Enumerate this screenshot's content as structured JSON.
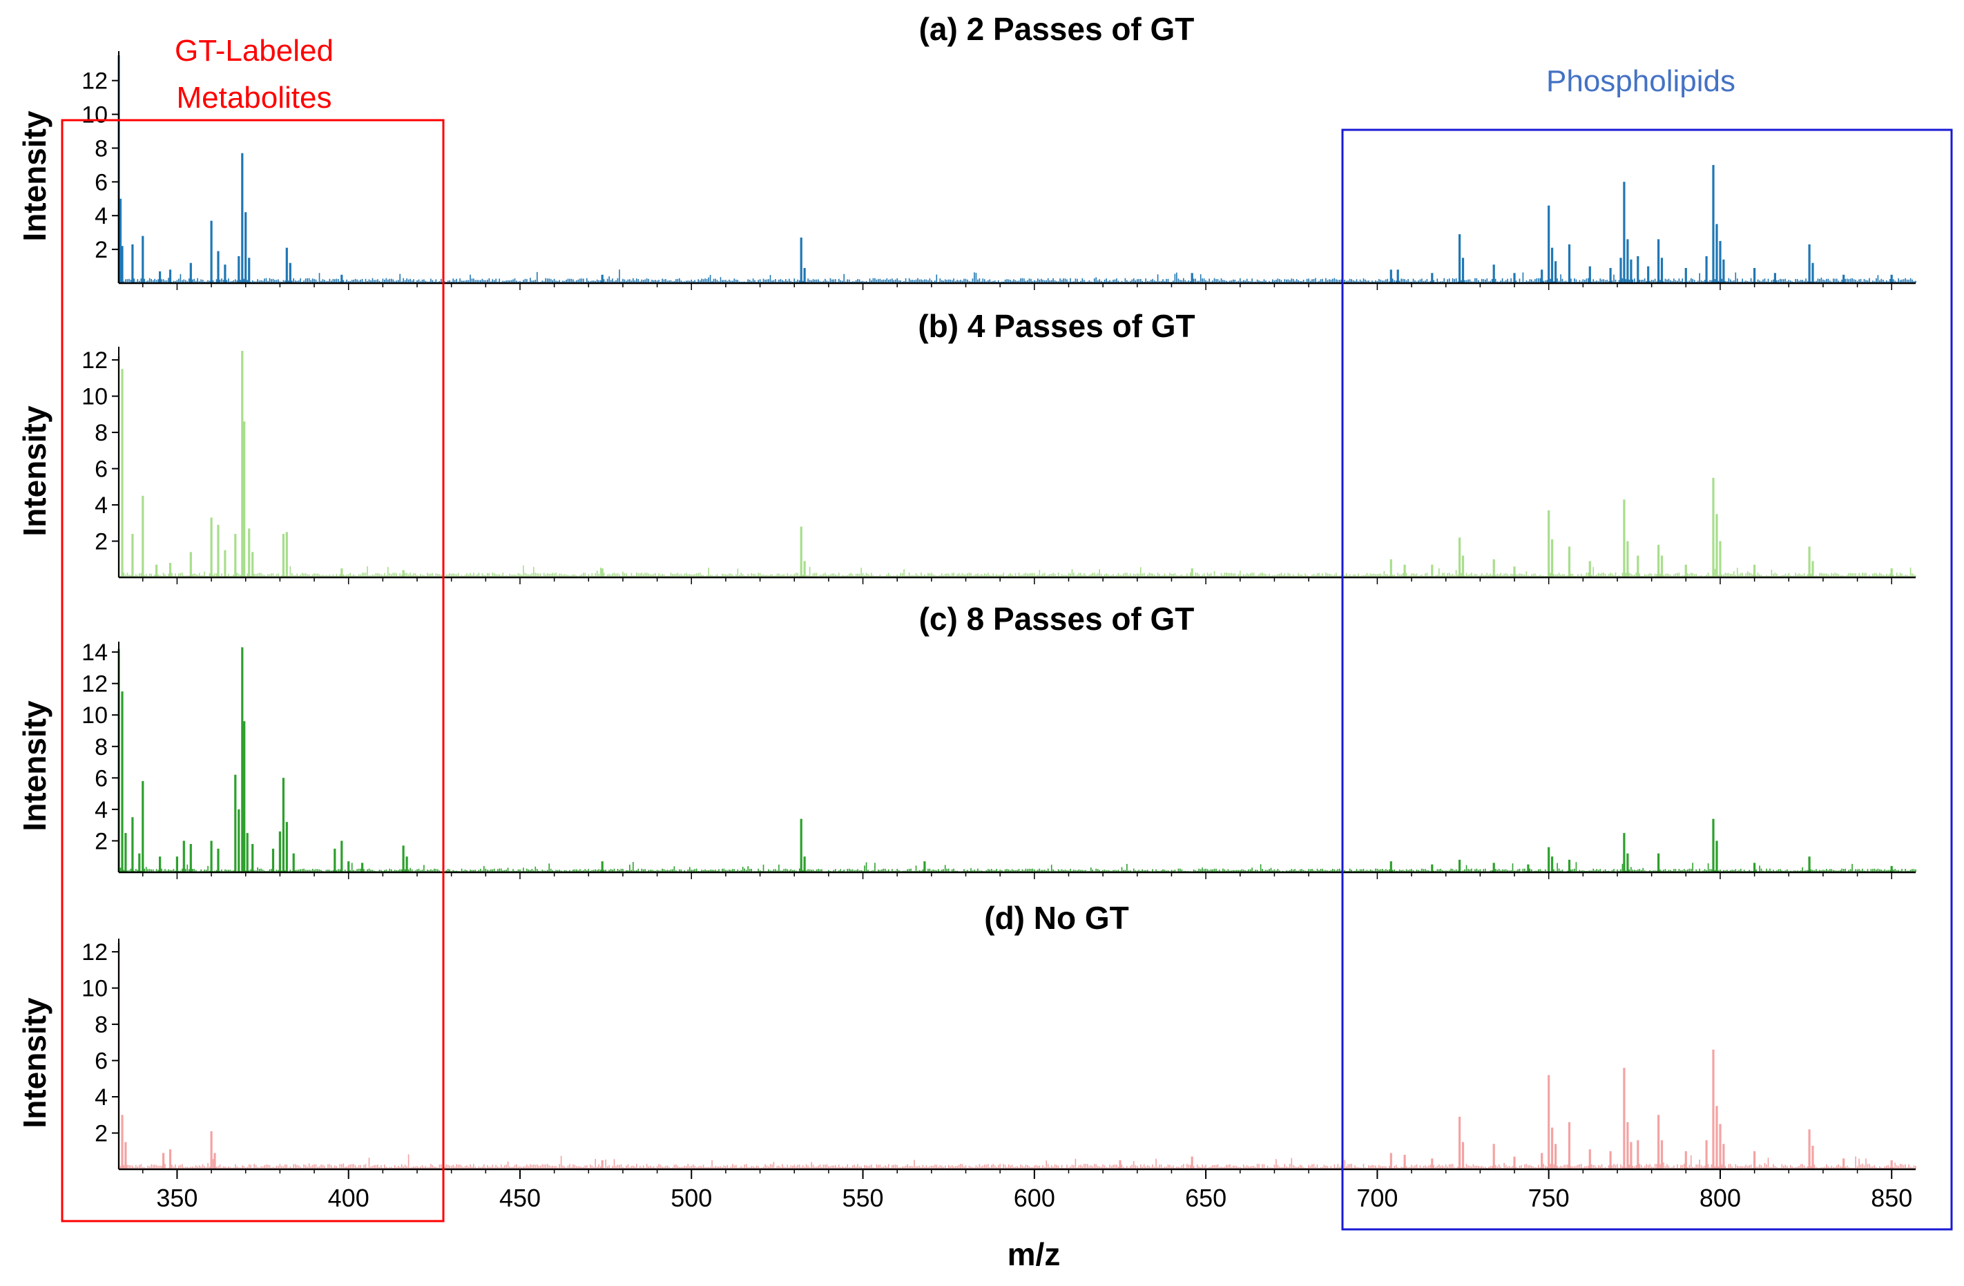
{
  "chart_data": [
    {
      "type": "spectrum",
      "title": "(a) 2 Passes of GT",
      "ylabel": "Intensity",
      "xlabel": "",
      "xlim": [
        333,
        857
      ],
      "ylim": [
        0,
        13.5
      ],
      "yticks": [
        2,
        4,
        6,
        8,
        10,
        12
      ],
      "color": "#1f77b4",
      "noise": 0.25,
      "peaks": [
        {
          "x": 333,
          "y": 13.5
        },
        {
          "x": 333.5,
          "y": 5.0
        },
        {
          "x": 334,
          "y": 2.2
        },
        {
          "x": 337,
          "y": 2.3
        },
        {
          "x": 340,
          "y": 2.8
        },
        {
          "x": 345,
          "y": 0.7
        },
        {
          "x": 348,
          "y": 0.8
        },
        {
          "x": 354,
          "y": 1.2
        },
        {
          "x": 360,
          "y": 3.7
        },
        {
          "x": 362,
          "y": 1.9
        },
        {
          "x": 364,
          "y": 1.1
        },
        {
          "x": 368,
          "y": 1.6
        },
        {
          "x": 369,
          "y": 7.7
        },
        {
          "x": 370,
          "y": 4.2
        },
        {
          "x": 371,
          "y": 1.5
        },
        {
          "x": 382,
          "y": 2.1
        },
        {
          "x": 383,
          "y": 1.2
        },
        {
          "x": 398,
          "y": 0.5
        },
        {
          "x": 474,
          "y": 0.5
        },
        {
          "x": 532,
          "y": 2.7
        },
        {
          "x": 533,
          "y": 0.9
        },
        {
          "x": 646,
          "y": 0.6
        },
        {
          "x": 704,
          "y": 0.8
        },
        {
          "x": 706,
          "y": 0.8
        },
        {
          "x": 716,
          "y": 0.6
        },
        {
          "x": 724,
          "y": 2.9
        },
        {
          "x": 725,
          "y": 1.5
        },
        {
          "x": 734,
          "y": 1.1
        },
        {
          "x": 740,
          "y": 0.6
        },
        {
          "x": 748,
          "y": 0.8
        },
        {
          "x": 750,
          "y": 4.6
        },
        {
          "x": 751,
          "y": 2.1
        },
        {
          "x": 752,
          "y": 1.3
        },
        {
          "x": 756,
          "y": 2.3
        },
        {
          "x": 762,
          "y": 1.0
        },
        {
          "x": 768,
          "y": 0.9
        },
        {
          "x": 771,
          "y": 1.5
        },
        {
          "x": 772,
          "y": 6.0
        },
        {
          "x": 773,
          "y": 2.6
        },
        {
          "x": 774,
          "y": 1.4
        },
        {
          "x": 776,
          "y": 1.6
        },
        {
          "x": 779,
          "y": 1.0
        },
        {
          "x": 782,
          "y": 2.6
        },
        {
          "x": 783,
          "y": 1.5
        },
        {
          "x": 790,
          "y": 0.9
        },
        {
          "x": 796,
          "y": 1.6
        },
        {
          "x": 798,
          "y": 7.0
        },
        {
          "x": 799,
          "y": 3.5
        },
        {
          "x": 800,
          "y": 2.5
        },
        {
          "x": 801,
          "y": 1.4
        },
        {
          "x": 810,
          "y": 0.9
        },
        {
          "x": 816,
          "y": 0.6
        },
        {
          "x": 826,
          "y": 2.3
        },
        {
          "x": 827,
          "y": 1.2
        },
        {
          "x": 836,
          "y": 0.5
        },
        {
          "x": 850,
          "y": 0.5
        }
      ]
    },
    {
      "type": "spectrum",
      "title": "(b) 4 Passes of GT",
      "ylabel": "Intensity",
      "xlabel": "",
      "xlim": [
        333,
        857
      ],
      "ylim": [
        0,
        12.5
      ],
      "yticks": [
        2,
        4,
        6,
        8,
        10,
        12
      ],
      "color": "#a8de8c",
      "noise": 0.22,
      "peaks": [
        {
          "x": 333,
          "y": 12.2
        },
        {
          "x": 334,
          "y": 11.5
        },
        {
          "x": 337,
          "y": 2.4
        },
        {
          "x": 340,
          "y": 4.5
        },
        {
          "x": 344,
          "y": 0.7
        },
        {
          "x": 348,
          "y": 0.8
        },
        {
          "x": 354,
          "y": 1.4
        },
        {
          "x": 360,
          "y": 3.3
        },
        {
          "x": 362,
          "y": 2.9
        },
        {
          "x": 364,
          "y": 1.5
        },
        {
          "x": 367,
          "y": 2.4
        },
        {
          "x": 369,
          "y": 12.5
        },
        {
          "x": 369.6,
          "y": 8.6
        },
        {
          "x": 371,
          "y": 2.7
        },
        {
          "x": 372,
          "y": 1.4
        },
        {
          "x": 381,
          "y": 2.4
        },
        {
          "x": 382,
          "y": 2.5
        },
        {
          "x": 398,
          "y": 0.5
        },
        {
          "x": 416,
          "y": 0.4
        },
        {
          "x": 474,
          "y": 0.5
        },
        {
          "x": 532,
          "y": 2.8
        },
        {
          "x": 533,
          "y": 0.9
        },
        {
          "x": 646,
          "y": 0.5
        },
        {
          "x": 704,
          "y": 1.0
        },
        {
          "x": 708,
          "y": 0.7
        },
        {
          "x": 716,
          "y": 0.7
        },
        {
          "x": 724,
          "y": 2.2
        },
        {
          "x": 725,
          "y": 1.2
        },
        {
          "x": 734,
          "y": 1.0
        },
        {
          "x": 740,
          "y": 0.6
        },
        {
          "x": 750,
          "y": 3.7
        },
        {
          "x": 751,
          "y": 2.1
        },
        {
          "x": 756,
          "y": 1.7
        },
        {
          "x": 762,
          "y": 0.9
        },
        {
          "x": 772,
          "y": 4.3
        },
        {
          "x": 773,
          "y": 2.0
        },
        {
          "x": 776,
          "y": 1.2
        },
        {
          "x": 782,
          "y": 1.8
        },
        {
          "x": 783,
          "y": 1.2
        },
        {
          "x": 790,
          "y": 0.7
        },
        {
          "x": 798,
          "y": 5.5
        },
        {
          "x": 799,
          "y": 3.5
        },
        {
          "x": 800,
          "y": 2.0
        },
        {
          "x": 810,
          "y": 0.7
        },
        {
          "x": 826,
          "y": 1.7
        },
        {
          "x": 827,
          "y": 0.9
        },
        {
          "x": 850,
          "y": 0.5
        }
      ]
    },
    {
      "type": "spectrum",
      "title": "(c) 8 Passes of GT",
      "ylabel": "Intensity",
      "xlabel": "",
      "xlim": [
        333,
        857
      ],
      "ylim": [
        0,
        14.4
      ],
      "yticks": [
        2,
        4,
        6,
        8,
        10,
        12,
        14
      ],
      "color": "#2ca02c",
      "noise": 0.2,
      "peaks": [
        {
          "x": 333,
          "y": 14.2
        },
        {
          "x": 334,
          "y": 11.5
        },
        {
          "x": 335,
          "y": 2.5
        },
        {
          "x": 337,
          "y": 3.5
        },
        {
          "x": 339,
          "y": 1.2
        },
        {
          "x": 340,
          "y": 5.8
        },
        {
          "x": 345,
          "y": 1.0
        },
        {
          "x": 350,
          "y": 1.0
        },
        {
          "x": 352,
          "y": 2.0
        },
        {
          "x": 354,
          "y": 1.8
        },
        {
          "x": 360,
          "y": 2.0
        },
        {
          "x": 362,
          "y": 1.5
        },
        {
          "x": 367,
          "y": 6.2
        },
        {
          "x": 368,
          "y": 4.0
        },
        {
          "x": 369,
          "y": 14.3
        },
        {
          "x": 369.6,
          "y": 9.6
        },
        {
          "x": 370.5,
          "y": 2.5
        },
        {
          "x": 372,
          "y": 1.8
        },
        {
          "x": 378,
          "y": 1.5
        },
        {
          "x": 380,
          "y": 2.6
        },
        {
          "x": 381,
          "y": 6.0
        },
        {
          "x": 382,
          "y": 3.2
        },
        {
          "x": 384,
          "y": 1.2
        },
        {
          "x": 396,
          "y": 1.5
        },
        {
          "x": 398,
          "y": 2.0
        },
        {
          "x": 400,
          "y": 0.7
        },
        {
          "x": 404,
          "y": 0.6
        },
        {
          "x": 416,
          "y": 1.7
        },
        {
          "x": 417,
          "y": 1.0
        },
        {
          "x": 474,
          "y": 0.7
        },
        {
          "x": 532,
          "y": 3.4
        },
        {
          "x": 533,
          "y": 1.0
        },
        {
          "x": 568,
          "y": 0.7
        },
        {
          "x": 704,
          "y": 0.7
        },
        {
          "x": 716,
          "y": 0.5
        },
        {
          "x": 724,
          "y": 0.8
        },
        {
          "x": 734,
          "y": 0.6
        },
        {
          "x": 744,
          "y": 0.5
        },
        {
          "x": 750,
          "y": 1.6
        },
        {
          "x": 751,
          "y": 1.0
        },
        {
          "x": 756,
          "y": 0.8
        },
        {
          "x": 772,
          "y": 2.5
        },
        {
          "x": 773,
          "y": 1.2
        },
        {
          "x": 782,
          "y": 1.2
        },
        {
          "x": 798,
          "y": 3.4
        },
        {
          "x": 799,
          "y": 2.0
        },
        {
          "x": 810,
          "y": 0.6
        },
        {
          "x": 826,
          "y": 1.0
        },
        {
          "x": 850,
          "y": 0.4
        }
      ]
    },
    {
      "type": "spectrum",
      "title": "(d) No GT",
      "ylabel": "Intensity",
      "xlabel": "m/z",
      "xlim": [
        333,
        857
      ],
      "ylim": [
        0,
        12.5
      ],
      "yticks": [
        2,
        4,
        6,
        8,
        10,
        12
      ],
      "xticks": [
        350,
        400,
        450,
        500,
        550,
        600,
        650,
        700,
        750,
        800,
        850
      ],
      "color": "#f4a3a3",
      "noise": 0.25,
      "peaks": [
        {
          "x": 333,
          "y": 12.5
        },
        {
          "x": 334,
          "y": 3.0
        },
        {
          "x": 335,
          "y": 1.5
        },
        {
          "x": 346,
          "y": 0.9
        },
        {
          "x": 348,
          "y": 1.1
        },
        {
          "x": 360,
          "y": 2.1
        },
        {
          "x": 361,
          "y": 0.9
        },
        {
          "x": 474,
          "y": 0.5
        },
        {
          "x": 625,
          "y": 0.5
        },
        {
          "x": 646,
          "y": 0.7
        },
        {
          "x": 704,
          "y": 0.9
        },
        {
          "x": 708,
          "y": 0.8
        },
        {
          "x": 716,
          "y": 0.6
        },
        {
          "x": 724,
          "y": 2.9
        },
        {
          "x": 725,
          "y": 1.5
        },
        {
          "x": 734,
          "y": 1.4
        },
        {
          "x": 740,
          "y": 0.7
        },
        {
          "x": 748,
          "y": 0.9
        },
        {
          "x": 750,
          "y": 5.2
        },
        {
          "x": 751,
          "y": 2.3
        },
        {
          "x": 752,
          "y": 1.4
        },
        {
          "x": 756,
          "y": 2.6
        },
        {
          "x": 762,
          "y": 1.1
        },
        {
          "x": 768,
          "y": 1.0
        },
        {
          "x": 772,
          "y": 5.6
        },
        {
          "x": 773,
          "y": 2.6
        },
        {
          "x": 774,
          "y": 1.5
        },
        {
          "x": 776,
          "y": 1.6
        },
        {
          "x": 782,
          "y": 3.0
        },
        {
          "x": 783,
          "y": 1.6
        },
        {
          "x": 790,
          "y": 1.0
        },
        {
          "x": 796,
          "y": 1.6
        },
        {
          "x": 798,
          "y": 6.6
        },
        {
          "x": 799,
          "y": 3.5
        },
        {
          "x": 800,
          "y": 2.5
        },
        {
          "x": 801,
          "y": 1.4
        },
        {
          "x": 810,
          "y": 1.0
        },
        {
          "x": 826,
          "y": 2.2
        },
        {
          "x": 827,
          "y": 1.3
        },
        {
          "x": 836,
          "y": 0.6
        },
        {
          "x": 850,
          "y": 0.5
        }
      ]
    }
  ],
  "annotations": {
    "gt_region": {
      "label_line1": "GT-Labeled",
      "label_line2": "Metabolites",
      "color": "#ff0000",
      "x_range": [
        317,
        428
      ]
    },
    "phospholipid_region": {
      "label": "Phospholipids",
      "color": "#4472c4",
      "box_color": "#1a1ad6",
      "x_range": [
        690,
        866
      ]
    }
  }
}
